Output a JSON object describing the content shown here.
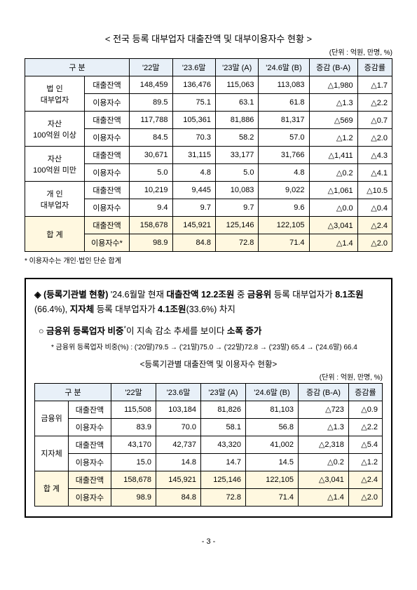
{
  "table1": {
    "title": "< 전국 등록 대부업자 대출잔액 및 대부이용자수 현황 >",
    "unit": "(단위 : 억원, 만명, %)",
    "headers": {
      "cat": "구  분",
      "h1": "'22말",
      "h2": "'23.6말",
      "h3": "'23말 (A)",
      "h4": "'24.6말 (B)",
      "h5": "증감 (B-A)",
      "h6": "증감률"
    },
    "rows": [
      {
        "g": "법  인\n대부업자",
        "m": "대출잔액",
        "v": [
          "148,459",
          "136,476",
          "115,063",
          "113,083",
          "△1,980",
          "△1.7"
        ]
      },
      {
        "m": "이용자수",
        "v": [
          "89.5",
          "75.1",
          "63.1",
          "61.8",
          "△1.3",
          "△2.2"
        ]
      },
      {
        "g": "자산\n100억원 이상",
        "m": "대출잔액",
        "v": [
          "117,788",
          "105,361",
          "81,886",
          "81,317",
          "△569",
          "△0.7"
        ]
      },
      {
        "m": "이용자수",
        "v": [
          "84.5",
          "70.3",
          "58.2",
          "57.0",
          "△1.2",
          "△2.0"
        ]
      },
      {
        "g": "자산\n100억원 미만",
        "m": "대출잔액",
        "v": [
          "30,671",
          "31,115",
          "33,177",
          "31,766",
          "△1,411",
          "△4.3"
        ]
      },
      {
        "m": "이용자수",
        "v": [
          "5.0",
          "4.8",
          "5.0",
          "4.8",
          "△0.2",
          "△4.1"
        ]
      },
      {
        "g": "개  인\n대부업자",
        "m": "대출잔액",
        "v": [
          "10,219",
          "9,445",
          "10,083",
          "9,022",
          "△1,061",
          "△10.5"
        ]
      },
      {
        "m": "이용자수",
        "v": [
          "9.4",
          "9.7",
          "9.7",
          "9.6",
          "△0.0",
          "△0.4"
        ]
      },
      {
        "g": "합  계",
        "m": "대출잔액",
        "v": [
          "158,678",
          "145,921",
          "125,146",
          "122,105",
          "△3,041",
          "△2.4"
        ],
        "total": true
      },
      {
        "m": "이용자수*",
        "v": [
          "98.9",
          "84.8",
          "72.8",
          "71.4",
          "△1.4",
          "△2.0"
        ],
        "total": true
      }
    ],
    "footnote": "* 이용자수는 개인·법인 단순 합계"
  },
  "box": {
    "head_pre": "◈ (등록기관별 현황)",
    "head_body": " '24.6월말 현재 ",
    "head_amt": "대출잔액 12.2조원",
    "head_mid": " 중 ",
    "head_fsc": "금융위",
    "head_after1": " 등록 대부업자가 ",
    "head_fsc_amt": "8.1조원",
    "head_fsc_pct": "(66.4%)",
    "head_sep": ", ",
    "head_loc": "지자체",
    "head_after2": " 등록 대부업자가 ",
    "head_loc_amt": "4.1조원",
    "head_loc_pct": "(33.6%)",
    "head_tail": " 차지",
    "sub_pre": "○ ",
    "sub_b1": "금융위 등록업자 비중",
    "sub_sup": "*",
    "sub_mid": "이 지속 감소 추세를 보이다 ",
    "sub_b2": "소폭 증가",
    "note": "* 금융위 등록업자 비중(%) : ('20말)79.5 → ('21말)75.0  → ('22말)72.8 → ('23말) 65.4 → ('24.6말) 66.4",
    "table_title": "<등록기관별 대출잔액 및 이용자수 현황>",
    "unit": "(단위 : 억원, 만명, %)"
  },
  "table2": {
    "headers": {
      "cat": "구  분",
      "h1": "'22말",
      "h2": "'23.6말",
      "h3": "'23말 (A)",
      "h4": "'24.6말 (B)",
      "h5": "증감 (B-A)",
      "h6": "증감률"
    },
    "rows": [
      {
        "g": "금융위",
        "m": "대출잔액",
        "v": [
          "115,508",
          "103,184",
          "81,826",
          "81,103",
          "△723",
          "△0.9"
        ]
      },
      {
        "m": "이용자수",
        "v": [
          "83.9",
          "70.0",
          "58.1",
          "56.8",
          "△1.3",
          "△2.2"
        ]
      },
      {
        "g": "지자체",
        "m": "대출잔액",
        "v": [
          "43,170",
          "42,737",
          "43,320",
          "41,002",
          "△2,318",
          "△5.4"
        ]
      },
      {
        "m": "이용자수",
        "v": [
          "15.0",
          "14.8",
          "14.7",
          "14.5",
          "△0.2",
          "△1.2"
        ]
      },
      {
        "g": "합  계",
        "m": "대출잔액",
        "v": [
          "158,678",
          "145,921",
          "125,146",
          "122,105",
          "△3,041",
          "△2.4"
        ],
        "total": true
      },
      {
        "m": "이용자수",
        "v": [
          "98.9",
          "84.8",
          "72.8",
          "71.4",
          "△1.4",
          "△2.0"
        ],
        "total": true
      }
    ]
  },
  "page": "- 3 -"
}
